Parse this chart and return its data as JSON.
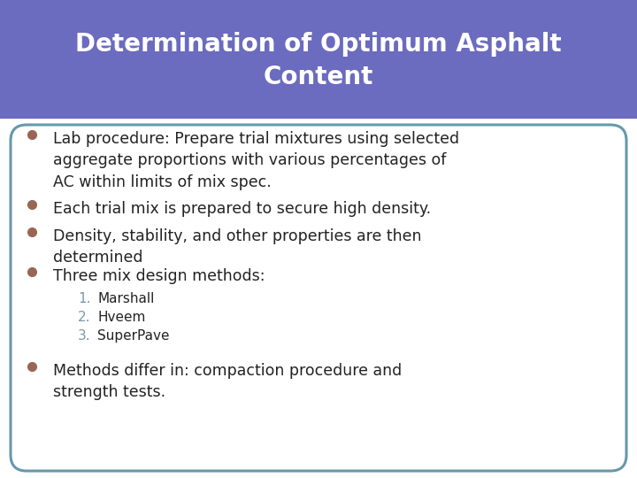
{
  "title_line1": "Determination of Optimum Asphalt",
  "title_line2": "Content",
  "title_bg_color": "#6B6BBF",
  "title_text_color": "#FFFFFF",
  "body_bg_color": "#FFFFFF",
  "page_bg_color": "#FFFFFF",
  "border_color": "#6699AA",
  "bullet_color": "#996655",
  "bullet_text_color": "#222222",
  "numbered_color": "#7799AA",
  "separator_color": "#FFFFFF",
  "bullets": [
    "Lab procedure: Prepare trial mixtures using selected\naggregate proportions with various percentages of\nAC within limits of mix spec.",
    "Each trial mix is prepared to secure high density.",
    "Density, stability, and other properties are then\ndetermined",
    "Three mix design methods:"
  ],
  "numbered_items": [
    "Marshall",
    "Hveem",
    "SuperPave"
  ],
  "last_bullet": "Methods differ in: compaction procedure and\nstrength tests.",
  "font_size_title": 20,
  "font_size_body": 12.5,
  "font_size_numbered": 11
}
